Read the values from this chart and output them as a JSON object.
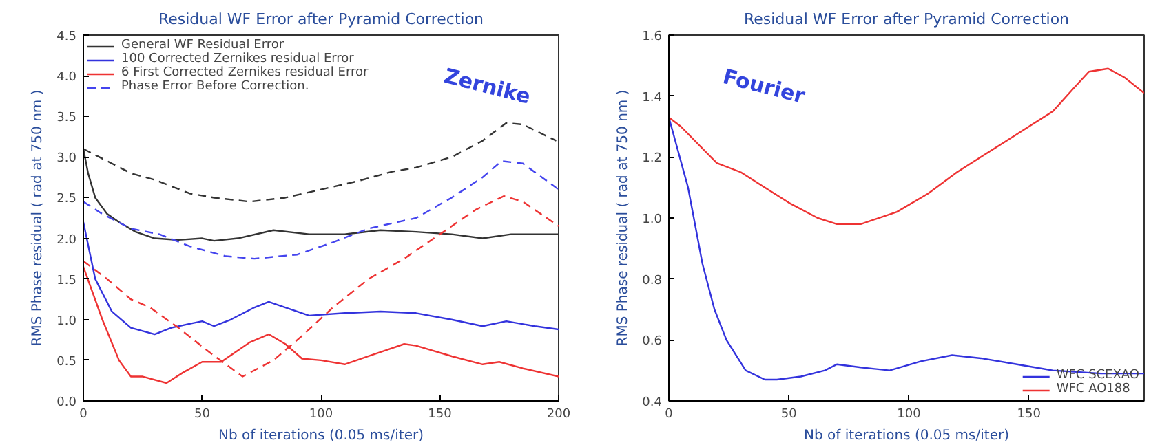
{
  "chart_data": [
    {
      "type": "line",
      "title": "Residual WF Error after Pyramid Correction",
      "xlabel": "Nb of iterations (0.05 ms/iter)",
      "ylabel": "RMS Phase residual ( rad at 750 nm )",
      "annotations": [
        "Zernike"
      ],
      "xlim": [
        0,
        200
      ],
      "ylim": [
        0,
        4.5
      ],
      "xticks": [
        0,
        50,
        100,
        150,
        200
      ],
      "yticks": [
        {
          "value": 0,
          "label": "0.0"
        },
        0.5,
        {
          "value": 1,
          "label": "1.0"
        },
        1.5,
        {
          "value": 2,
          "label": "2.0"
        },
        2.5,
        {
          "value": 3,
          "label": "3.0"
        },
        3.5,
        {
          "value": 4,
          "label": "4.0"
        },
        4.5
      ],
      "grid": false,
      "legend": "top left",
      "series": [
        {
          "name": "General WF Residual Error",
          "color": "#333333",
          "line_style": "solid",
          "x": [
            0,
            2,
            5,
            10,
            15,
            22,
            30,
            40,
            50,
            55,
            65,
            80,
            95,
            110,
            125,
            140,
            155,
            168,
            180,
            200
          ],
          "values": [
            3.1,
            2.8,
            2.5,
            2.3,
            2.2,
            2.08,
            2.0,
            1.98,
            2.0,
            1.97,
            2.0,
            2.1,
            2.05,
            2.05,
            2.1,
            2.08,
            2.05,
            2.0,
            2.05,
            2.05
          ]
        },
        {
          "name": "100 Corrected Zernikes residual Error",
          "color": "#3333dd",
          "line_style": "solid",
          "x": [
            0,
            5,
            12,
            20,
            30,
            37,
            45,
            50,
            55,
            62,
            72,
            78,
            85,
            95,
            110,
            125,
            140,
            155,
            168,
            178,
            190,
            200
          ],
          "values": [
            2.2,
            1.5,
            1.1,
            0.9,
            0.82,
            0.9,
            0.95,
            0.98,
            0.92,
            1.0,
            1.15,
            1.22,
            1.15,
            1.05,
            1.08,
            1.1,
            1.08,
            1.0,
            0.92,
            0.98,
            0.92,
            0.88
          ]
        },
        {
          "name": "6 First Corrected Zernikes residual Error",
          "color": "#ee3333",
          "line_style": "solid",
          "x": [
            0,
            8,
            15,
            20,
            25,
            35,
            42,
            50,
            58,
            70,
            78,
            85,
            92,
            100,
            110,
            120,
            135,
            140,
            155,
            168,
            175,
            185,
            200
          ],
          "values": [
            1.65,
            1.0,
            0.5,
            0.3,
            0.3,
            0.22,
            0.35,
            0.48,
            0.48,
            0.72,
            0.82,
            0.7,
            0.52,
            0.5,
            0.45,
            0.55,
            0.7,
            0.68,
            0.55,
            0.45,
            0.48,
            0.4,
            0.3
          ]
        },
        {
          "name": "Phase Error Before Correction.",
          "color": "#4444ee",
          "line_style": "dashed",
          "x": [
            0,
            8,
            20,
            32,
            45,
            60,
            72,
            90,
            105,
            120,
            140,
            155,
            168,
            176,
            185,
            200
          ],
          "values": [
            2.45,
            2.3,
            2.12,
            2.05,
            1.9,
            1.78,
            1.75,
            1.8,
            1.95,
            2.12,
            2.25,
            2.5,
            2.75,
            2.95,
            2.92,
            2.6
          ]
        },
        {
          "color": "#333333",
          "line_style": "dashed",
          "x": [
            0,
            10,
            20,
            30,
            45,
            55,
            70,
            85,
            100,
            115,
            130,
            140,
            155,
            168,
            178,
            185,
            199
          ],
          "values": [
            3.1,
            2.95,
            2.8,
            2.72,
            2.55,
            2.5,
            2.45,
            2.5,
            2.6,
            2.7,
            2.82,
            2.87,
            3.0,
            3.2,
            3.42,
            3.4,
            3.2
          ]
        },
        {
          "color": "#ee3333",
          "line_style": "dashed",
          "x": [
            0,
            10,
            20,
            28,
            40,
            53,
            60,
            67,
            80,
            92,
            105,
            120,
            135,
            150,
            165,
            177,
            185,
            200
          ],
          "values": [
            1.72,
            1.5,
            1.25,
            1.15,
            0.9,
            0.6,
            0.45,
            0.3,
            0.5,
            0.8,
            1.15,
            1.5,
            1.75,
            2.05,
            2.35,
            2.52,
            2.45,
            2.15
          ]
        }
      ]
    },
    {
      "type": "line",
      "title": "Residual WF Error after Pyramid Correction",
      "xlabel": "Nb of iterations (0.05 ms/iter)",
      "ylabel": "RMS Phase residual ( rad at 750 nm )",
      "annotations": [
        "Fourier"
      ],
      "xlim": [
        0,
        198
      ],
      "ylim": [
        0.4,
        1.6
      ],
      "xticks": [
        0,
        50,
        100,
        150
      ],
      "yticks": [
        0.4,
        0.6,
        0.8,
        {
          "value": 1,
          "label": "1.0"
        },
        1.2,
        1.4,
        1.6
      ],
      "grid": false,
      "legend": "bottom right",
      "series": [
        {
          "name": "WFC SCEXAO",
          "color": "#3333dd",
          "line_style": "solid",
          "x": [
            0,
            8,
            14,
            19,
            24,
            32,
            40,
            45,
            55,
            65,
            70,
            80,
            92,
            105,
            118,
            130,
            145,
            160,
            180,
            198
          ],
          "values": [
            1.33,
            1.1,
            0.85,
            0.7,
            0.6,
            0.5,
            0.47,
            0.47,
            0.48,
            0.5,
            0.52,
            0.51,
            0.5,
            0.53,
            0.55,
            0.54,
            0.52,
            0.5,
            0.49,
            0.49
          ]
        },
        {
          "name": "WFC AO188",
          "color": "#ee3333",
          "line_style": "solid",
          "x": [
            0,
            5,
            15,
            20,
            30,
            40,
            50,
            62,
            70,
            80,
            95,
            108,
            120,
            130,
            140,
            150,
            160,
            168,
            175,
            183,
            190,
            198
          ],
          "values": [
            1.33,
            1.3,
            1.22,
            1.18,
            1.15,
            1.1,
            1.05,
            1.0,
            0.98,
            0.98,
            1.02,
            1.08,
            1.15,
            1.2,
            1.25,
            1.3,
            1.35,
            1.42,
            1.48,
            1.49,
            1.46,
            1.41
          ]
        }
      ]
    }
  ]
}
